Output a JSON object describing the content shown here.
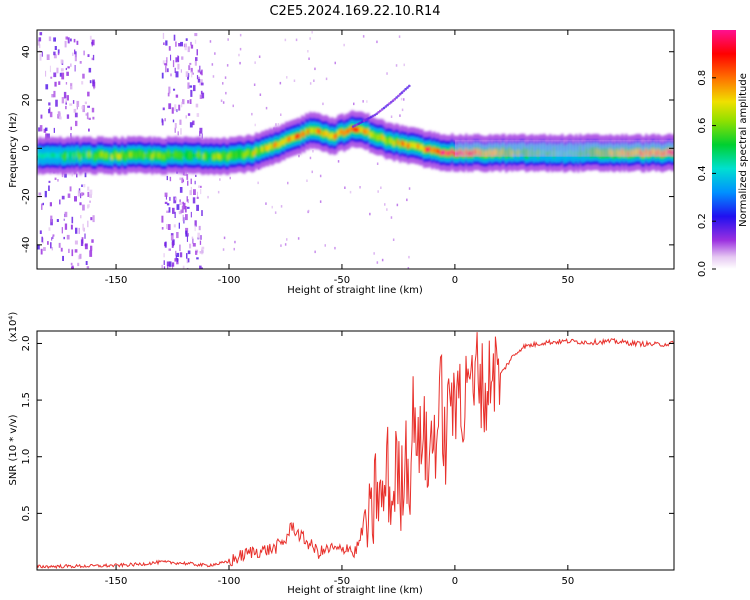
{
  "page_title": "C2E5.2024.169.22.10.R14",
  "chart_data": [
    {
      "type": "heatmap",
      "xlabel": "Height of straight line (km)",
      "ylabel": "Frequency (Hz)",
      "xlim": [
        -185,
        97
      ],
      "ylim": [
        -50,
        49
      ],
      "xticks": [
        -150,
        -100,
        -50,
        0,
        50
      ],
      "yticks": [
        -40,
        -20,
        0,
        20,
        40
      ],
      "grid": false,
      "colorbar": {
        "label": "Normalized spectral amplitude",
        "range": [
          0,
          1
        ],
        "ticks": [
          0.0,
          0.2,
          0.4,
          0.6,
          0.8
        ],
        "tick_labels": [
          "0.0",
          "0.2",
          "0.4",
          "0.6",
          "0.8"
        ],
        "colormap": "rainbow (white-violet-blue-cyan-green-yellow-red-magenta)"
      },
      "ridge": {
        "x": [
          -185,
          -150,
          -120,
          -100,
          -90,
          -80,
          -70,
          -63,
          -55,
          -45,
          -40,
          -30,
          -20,
          -10,
          0,
          20,
          50,
          97
        ],
        "y": [
          -3,
          -3,
          -3,
          -3,
          -2,
          1,
          5,
          8,
          5,
          8,
          7,
          3,
          1,
          -1,
          -2,
          -2,
          -2,
          -2
        ],
        "amplitude": [
          0.45,
          0.6,
          0.55,
          0.6,
          0.65,
          0.7,
          0.85,
          0.7,
          0.75,
          0.8,
          0.7,
          0.65,
          0.8,
          0.9,
          0.95,
          0.6,
          0.45,
          0.9
        ]
      },
      "secondary_ridge": {
        "x": [
          -45,
          -35,
          -27,
          -20
        ],
        "y": [
          9,
          14,
          20,
          26
        ]
      },
      "noise_bands": [
        [
          -185,
          -160
        ],
        [
          -130,
          -112
        ]
      ]
    },
    {
      "type": "line",
      "xlabel": "Height of straight line (km)",
      "ylabel": "SNR (10 * v/v)",
      "y_scale_label": "(x10⁴)",
      "xlim": [
        -185,
        97
      ],
      "ylim": [
        0,
        21100
      ],
      "xticks": [
        -150,
        -100,
        -50,
        0,
        50
      ],
      "yticks": [
        5000,
        10000,
        15000,
        20000
      ],
      "ytick_labels": [
        "0.5",
        "1.0",
        "1.5",
        "2.0"
      ],
      "grid": false,
      "series": [
        {
          "color": "#e8312c",
          "x": [
            -185,
            -160,
            -150,
            -140,
            -130,
            -120,
            -110,
            -100,
            -95,
            -90,
            -85,
            -80,
            -75,
            -72,
            -70,
            -65,
            -60,
            -55,
            -50,
            -47,
            -45,
            -42,
            -40,
            -37,
            -35,
            -32,
            -30,
            -28,
            -26,
            -24,
            -22,
            -20,
            -18,
            -16,
            -14,
            -12,
            -10,
            -8,
            -6,
            -4,
            -2,
            0,
            2,
            4,
            6,
            8,
            10,
            12,
            14,
            16,
            20,
            25,
            30,
            40,
            50,
            60,
            70,
            80,
            90,
            97
          ],
          "y": [
            300,
            350,
            400,
            500,
            700,
            600,
            400,
            700,
            1200,
            1600,
            1700,
            1900,
            2600,
            4000,
            3300,
            2400,
            1500,
            1900,
            1700,
            2200,
            1300,
            2600,
            4600,
            3300,
            7600,
            5200,
            9400,
            5100,
            9800,
            6100,
            11200,
            8000,
            15300,
            9200,
            14000,
            8100,
            12500,
            11700,
            15700,
            9800,
            17600,
            12000,
            18200,
            12900,
            19900,
            14300,
            18700,
            16300,
            15100,
            18100,
            17200,
            18700,
            19700,
            20100,
            20200,
            20100,
            20200,
            20000,
            19900,
            20000
          ]
        }
      ]
    }
  ]
}
